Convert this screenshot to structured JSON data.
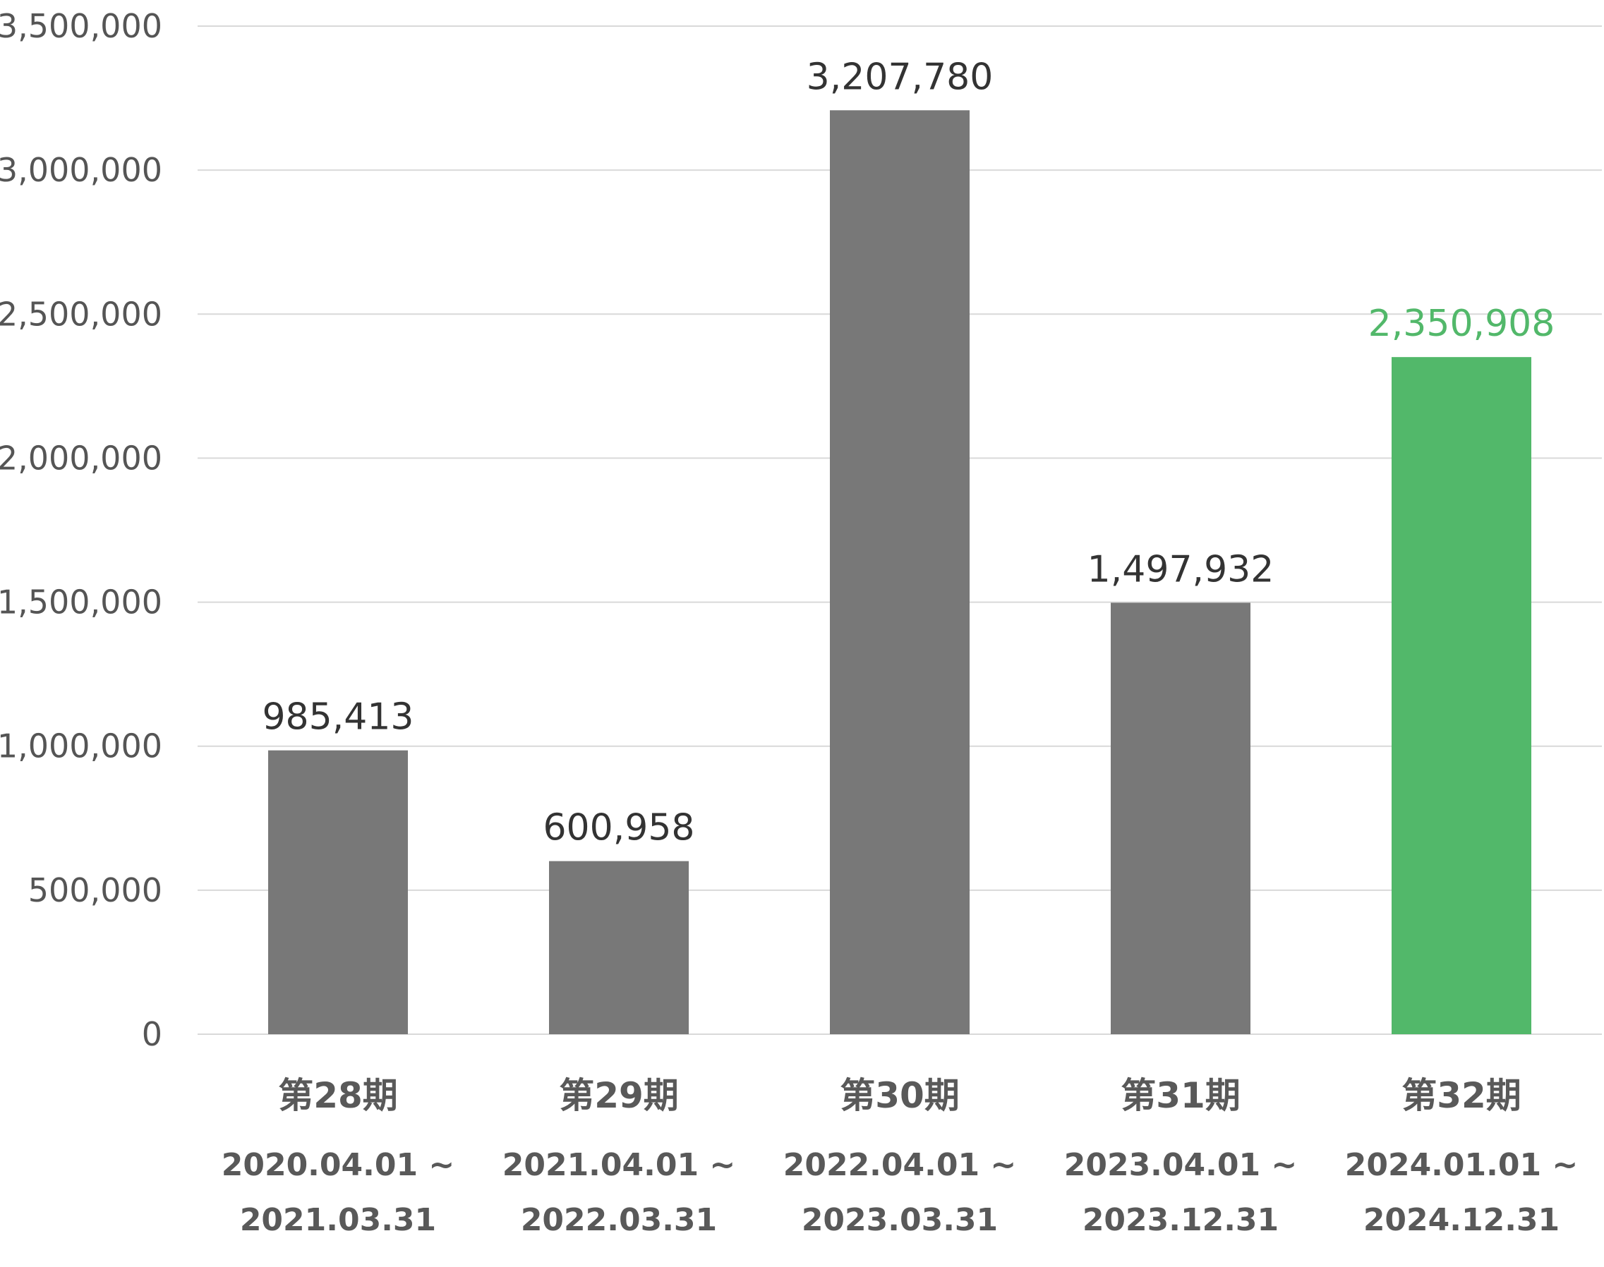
{
  "chart_data": {
    "type": "bar",
    "title": "",
    "xlabel": "",
    "ylabel": "",
    "ylim": [
      0,
      3500000
    ],
    "yticks": [
      0,
      500000,
      1000000,
      1500000,
      2000000,
      2500000,
      3000000,
      3500000
    ],
    "ytick_labels": [
      "0",
      "500,000",
      "1,000,000",
      "1,500,000",
      "2,000,000",
      "2,500,000",
      "3,000,000",
      "3,500,000"
    ],
    "grid": true,
    "legend": "none",
    "categories": [
      {
        "label": "第28期",
        "period_start": "2020.04.01 ~",
        "period_end": "2021.03.31"
      },
      {
        "label": "第29期",
        "period_start": "2021.04.01 ~",
        "period_end": "2022.03.31"
      },
      {
        "label": "第30期",
        "period_start": "2022.04.01 ~",
        "period_end": "2023.03.31"
      },
      {
        "label": "第31期",
        "period_start": "2023.04.01 ~",
        "period_end": "2023.12.31"
      },
      {
        "label": "第32期",
        "period_start": "2024.01.01 ~",
        "period_end": "2024.12.31"
      }
    ],
    "values": [
      985413,
      600958,
      3207780,
      1497932,
      2350908
    ],
    "value_labels": [
      "985,413",
      "600,958",
      "3,207,780",
      "1,497,932",
      "2,350,908"
    ],
    "highlight_index": 4,
    "colors": {
      "bar": "#787878",
      "highlight": "#52b86a",
      "value_label": "#333333",
      "value_label_highlight": "#52b86a",
      "axis_text": "#555555",
      "category_text": "#595959",
      "grid": "#d9d9d9"
    }
  }
}
